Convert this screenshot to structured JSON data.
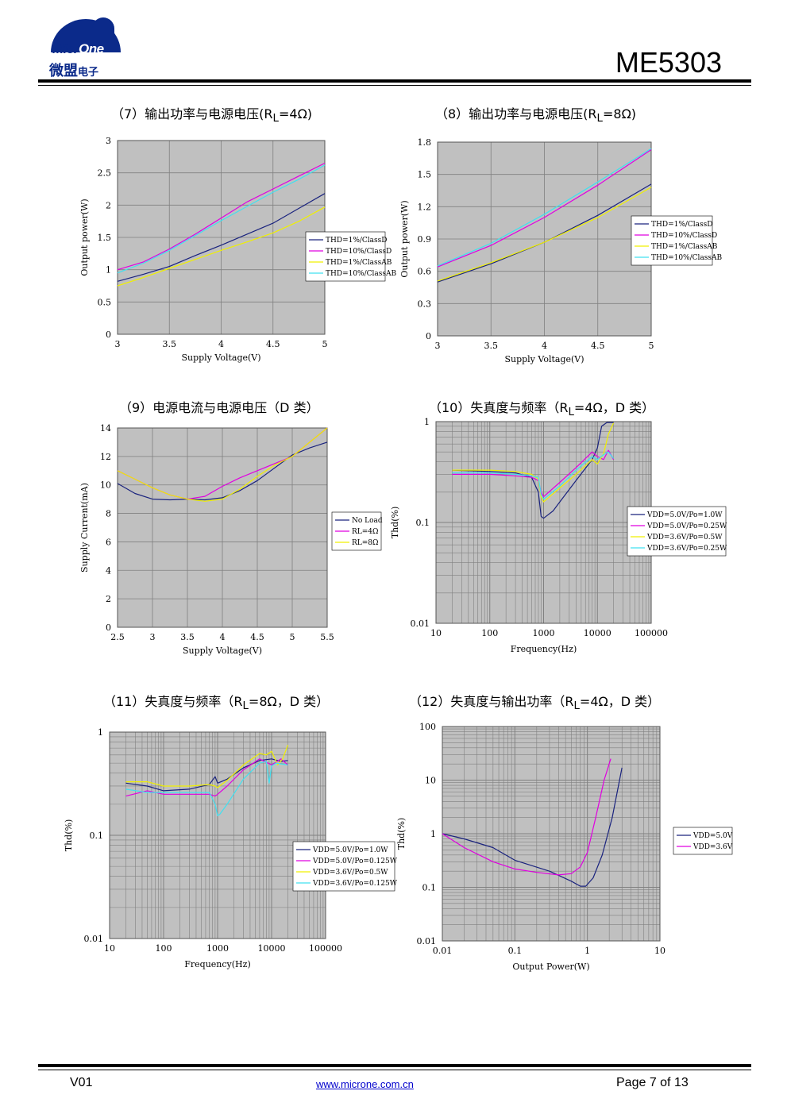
{
  "header": {
    "logo_text_a": "Micr",
    "logo_text_b": "One",
    "logo_cn_main": "微盟",
    "logo_cn_small": "电子",
    "doc_title": "ME5303"
  },
  "footer": {
    "version": "V01",
    "url": "www.microne.com.cn",
    "page": "Page 7 of 13"
  },
  "colors": {
    "plot_bg": "#c0c0c0",
    "grid": "#808080",
    "navy": "#1a237e",
    "magenta": "#e000e0",
    "yellow": "#f0f000",
    "cyan": "#40e0f0",
    "logo_blue": "#0b2a8a"
  },
  "chart_data": [
    {
      "id": "c7",
      "type": "line",
      "title_pre": "（7）输出功率与电源电压(R",
      "title_sub": "L",
      "title_post": "=4Ω)",
      "xlabel": "Supply Voltage(V)",
      "ylabel": "Output power(W)",
      "xscale": "linear",
      "yscale": "linear",
      "xlim": [
        3,
        5
      ],
      "ylim": [
        0,
        3
      ],
      "xticks": [
        3,
        3.5,
        4,
        4.5,
        5
      ],
      "xtick_labels": [
        "3",
        "3.5",
        "4",
        "4.5",
        "5"
      ],
      "yticks": [
        0,
        0.5,
        1,
        1.5,
        2,
        2.5,
        3
      ],
      "ytick_labels": [
        "0",
        "0.5",
        "1",
        "1.5",
        "2",
        "2.5",
        "3"
      ],
      "legend": "right",
      "series": [
        {
          "name": "THD=1%/ClassD",
          "color": "navy",
          "x": [
            3,
            3.25,
            3.5,
            3.75,
            4,
            4.25,
            4.5,
            4.75,
            5
          ],
          "y": [
            0.82,
            0.93,
            1.05,
            1.22,
            1.38,
            1.55,
            1.72,
            1.95,
            2.18
          ]
        },
        {
          "name": "THD=10%/ClassD",
          "color": "magenta",
          "x": [
            3,
            3.25,
            3.5,
            3.75,
            4,
            4.25,
            4.5,
            4.75,
            5
          ],
          "y": [
            1.0,
            1.12,
            1.32,
            1.55,
            1.8,
            2.05,
            2.25,
            2.45,
            2.65
          ]
        },
        {
          "name": "THD=1%/ClassAB",
          "color": "yellow",
          "x": [
            3,
            3.25,
            3.5,
            3.75,
            4,
            4.25,
            4.5,
            4.75,
            5
          ],
          "y": [
            0.75,
            0.88,
            1.02,
            1.16,
            1.3,
            1.43,
            1.57,
            1.75,
            1.97
          ]
        },
        {
          "name": "THD=10%/ClassAB",
          "color": "cyan",
          "x": [
            3,
            3.25,
            3.5,
            3.75,
            4,
            4.25,
            4.5,
            4.75,
            5
          ],
          "y": [
            0.95,
            1.1,
            1.3,
            1.53,
            1.76,
            1.98,
            2.2,
            2.4,
            2.62
          ]
        }
      ]
    },
    {
      "id": "c8",
      "type": "line",
      "title_pre": "（8）输出功率与电源电压(R",
      "title_sub": "L",
      "title_post": "=8Ω)",
      "xlabel": "Supply Voltage(V)",
      "ylabel": "Output power(W)",
      "xscale": "linear",
      "yscale": "linear",
      "xlim": [
        3,
        5
      ],
      "ylim": [
        0,
        1.8
      ],
      "xticks": [
        3,
        3.5,
        4,
        4.5,
        5
      ],
      "xtick_labels": [
        "3",
        "3.5",
        "4",
        "4.5",
        "5"
      ],
      "yticks": [
        0,
        0.3,
        0.6,
        0.9,
        1.2,
        1.5,
        1.8
      ],
      "ytick_labels": [
        "0",
        "0.3",
        "0.6",
        "0.9",
        "1.2",
        "1.5",
        "1.8"
      ],
      "legend": "right",
      "series": [
        {
          "name": "THD=1%/ClassD",
          "color": "navy",
          "x": [
            3,
            3.5,
            4,
            4.5,
            5
          ],
          "y": [
            0.5,
            0.67,
            0.87,
            1.12,
            1.41
          ]
        },
        {
          "name": "THD=10%/ClassD",
          "color": "magenta",
          "x": [
            3,
            3.5,
            4,
            4.5,
            5
          ],
          "y": [
            0.64,
            0.84,
            1.1,
            1.4,
            1.73
          ]
        },
        {
          "name": "THD=1%/ClassAB",
          "color": "yellow",
          "x": [
            3,
            3.5,
            4,
            4.5,
            5
          ],
          "y": [
            0.51,
            0.68,
            0.87,
            1.1,
            1.38
          ]
        },
        {
          "name": "THD=10%/ClassAB",
          "color": "cyan",
          "x": [
            3,
            3.5,
            4,
            4.5,
            5
          ],
          "y": [
            0.65,
            0.86,
            1.13,
            1.43,
            1.74
          ]
        }
      ]
    },
    {
      "id": "c9",
      "type": "line",
      "title_pre": "（9）电源电流与电源电压（D 类）",
      "title_sub": "",
      "title_post": "",
      "xlabel": "Supply Voltage(V)",
      "ylabel": "Supply Current(mA)",
      "xscale": "linear",
      "yscale": "linear",
      "xlim": [
        2.5,
        5.5
      ],
      "ylim": [
        0,
        14
      ],
      "xticks": [
        2.5,
        3,
        3.5,
        4,
        4.5,
        5,
        5.5
      ],
      "xtick_labels": [
        "2.5",
        "3",
        "3.5",
        "4",
        "4.5",
        "5",
        "5.5"
      ],
      "yticks": [
        0,
        2,
        4,
        6,
        8,
        10,
        12,
        14
      ],
      "ytick_labels": [
        "0",
        "2",
        "4",
        "6",
        "8",
        "10",
        "12",
        "14"
      ],
      "legend": "right",
      "series": [
        {
          "name": "No Load",
          "color": "navy",
          "x": [
            2.5,
            2.75,
            3,
            3.25,
            3.5,
            3.75,
            4,
            4.25,
            4.5,
            4.75,
            5,
            5.25,
            5.5
          ],
          "y": [
            10.1,
            9.4,
            9.0,
            8.95,
            9.0,
            8.95,
            9.1,
            9.6,
            10.3,
            11.2,
            12.1,
            12.6,
            13.0
          ]
        },
        {
          "name": "RL=4Ω",
          "color": "magenta",
          "x": [
            2.5,
            2.75,
            3,
            3.25,
            3.5,
            3.75,
            4,
            4.25,
            4.5,
            4.75,
            5,
            5.25,
            5.5
          ],
          "y": [
            11.0,
            10.4,
            9.8,
            9.3,
            9.0,
            9.2,
            9.9,
            10.5,
            11.0,
            11.5,
            12.0,
            13.0,
            14.0
          ]
        },
        {
          "name": "RL=8Ω",
          "color": "yellow",
          "x": [
            2.5,
            2.75,
            3,
            3.25,
            3.5,
            3.75,
            4,
            4.25,
            4.5,
            4.75,
            5,
            5.25,
            5.5
          ],
          "y": [
            11.0,
            10.4,
            9.8,
            9.3,
            9.0,
            8.85,
            9.0,
            9.7,
            10.6,
            11.4,
            12.0,
            13.0,
            14.0
          ]
        }
      ]
    },
    {
      "id": "c10",
      "type": "line",
      "title_pre": "（10）失真度与频率（R",
      "title_sub": "L",
      "title_post": "=4Ω，D 类）",
      "xlabel": "Frequency(Hz)",
      "ylabel": "Thd(%)",
      "xscale": "log",
      "yscale": "log",
      "xlim": [
        10,
        100000
      ],
      "ylim": [
        0.01,
        1
      ],
      "xticks": [
        10,
        100,
        1000,
        10000,
        100000
      ],
      "xtick_labels": [
        "10",
        "100",
        "1000",
        "10000",
        "100000"
      ],
      "yticks": [
        0.01,
        0.1,
        1
      ],
      "ytick_labels": [
        "0.01",
        "0.1",
        "1"
      ],
      "legend": "right",
      "series": [
        {
          "name": "VDD=5.0V/Po=1.0W",
          "color": "navy",
          "x": [
            20,
            100,
            300,
            600,
            800,
            900,
            1000,
            1500,
            2000,
            4000,
            8000,
            10000,
            12000,
            15000,
            20000
          ],
          "y": [
            0.33,
            0.32,
            0.31,
            0.28,
            0.2,
            0.115,
            0.11,
            0.13,
            0.16,
            0.26,
            0.42,
            0.55,
            0.9,
            0.98,
            0.98
          ]
        },
        {
          "name": "VDD=5.0V/Po=0.25W",
          "color": "magenta",
          "x": [
            20,
            100,
            300,
            600,
            800,
            900,
            1000,
            2000,
            4000,
            8000,
            10000,
            13000,
            16000,
            20000
          ],
          "y": [
            0.3,
            0.3,
            0.29,
            0.28,
            0.26,
            0.2,
            0.18,
            0.25,
            0.35,
            0.5,
            0.45,
            0.42,
            0.52,
            0.42
          ]
        },
        {
          "name": "VDD=3.6V/Po=0.5W",
          "color": "yellow",
          "x": [
            20,
            100,
            300,
            600,
            800,
            900,
            1000,
            2000,
            4000,
            8000,
            10000,
            13000,
            16000,
            20000
          ],
          "y": [
            0.33,
            0.33,
            0.32,
            0.3,
            0.27,
            0.18,
            0.16,
            0.22,
            0.3,
            0.42,
            0.38,
            0.48,
            0.75,
            0.97
          ]
        },
        {
          "name": "VDD=3.6V/Po=0.25W",
          "color": "cyan",
          "x": [
            20,
            100,
            300,
            600,
            800,
            900,
            1000,
            2000,
            4000,
            8000,
            10000,
            13000,
            16000,
            20000
          ],
          "y": [
            0.31,
            0.31,
            0.3,
            0.29,
            0.28,
            0.19,
            0.17,
            0.23,
            0.33,
            0.45,
            0.42,
            0.47,
            0.5,
            0.43
          ]
        }
      ]
    },
    {
      "id": "c11",
      "type": "line",
      "title_pre": "（11）失真度与频率（R",
      "title_sub": "L",
      "title_post": "=8Ω，D 类）",
      "xlabel": "Frequency(Hz)",
      "ylabel": "Thd(%)",
      "xscale": "log",
      "yscale": "log",
      "xlim": [
        10,
        100000
      ],
      "ylim": [
        0.01,
        1
      ],
      "xticks": [
        10,
        100,
        1000,
        10000,
        100000
      ],
      "xtick_labels": [
        "10",
        "100",
        "1000",
        "10000",
        "100000"
      ],
      "yticks": [
        0.01,
        0.1,
        1
      ],
      "ytick_labels": [
        "0.01",
        "0.1",
        "1"
      ],
      "legend": "right",
      "series": [
        {
          "name": "VDD=5.0V/Po=1.0W",
          "color": "navy",
          "x": [
            20,
            50,
            100,
            300,
            700,
            900,
            1000,
            1500,
            3000,
            6000,
            10000,
            15000,
            20000
          ],
          "y": [
            0.32,
            0.3,
            0.27,
            0.28,
            0.31,
            0.37,
            0.32,
            0.35,
            0.45,
            0.53,
            0.55,
            0.52,
            0.53
          ]
        },
        {
          "name": "VDD=5.0V/Po=0.125W",
          "color": "magenta",
          "x": [
            20,
            50,
            100,
            300,
            700,
            900,
            1000,
            1500,
            3000,
            6000,
            10000,
            15000,
            20000
          ],
          "y": [
            0.24,
            0.27,
            0.25,
            0.25,
            0.25,
            0.24,
            0.25,
            0.3,
            0.43,
            0.55,
            0.48,
            0.55,
            0.48
          ]
        },
        {
          "name": "VDD=3.6V/Po=0.5W",
          "color": "yellow",
          "x": [
            20,
            50,
            100,
            300,
            700,
            900,
            1000,
            1500,
            3000,
            6000,
            8000,
            10000,
            13000,
            16000,
            20000
          ],
          "y": [
            0.33,
            0.33,
            0.3,
            0.3,
            0.31,
            0.3,
            0.29,
            0.34,
            0.48,
            0.62,
            0.6,
            0.65,
            0.48,
            0.55,
            0.75
          ]
        },
        {
          "name": "VDD=3.6V/Po=0.125W",
          "color": "cyan",
          "x": [
            20,
            50,
            100,
            300,
            700,
            900,
            1000,
            1100,
            1500,
            3000,
            6000,
            8000,
            9000,
            10000,
            12000,
            20000
          ],
          "y": [
            0.28,
            0.26,
            0.26,
            0.26,
            0.26,
            0.2,
            0.155,
            0.16,
            0.2,
            0.35,
            0.5,
            0.52,
            0.32,
            0.47,
            0.5,
            0.48
          ]
        }
      ]
    },
    {
      "id": "c12",
      "type": "line",
      "title_pre": "（12）失真度与输出功率（R",
      "title_sub": "L",
      "title_post": "=4Ω，D 类）",
      "xlabel": "Output Power(W)",
      "ylabel": "Thd(%)",
      "xscale": "log",
      "yscale": "log",
      "xlim": [
        0.01,
        10
      ],
      "ylim": [
        0.01,
        100
      ],
      "xticks": [
        0.01,
        0.1,
        1,
        10
      ],
      "xtick_labels": [
        "0.01",
        "0.1",
        "1",
        "10"
      ],
      "yticks": [
        0.01,
        0.1,
        1,
        10,
        100
      ],
      "ytick_labels": [
        "0.01",
        "0.1",
        "1",
        "10",
        "100"
      ],
      "legend": "right",
      "series": [
        {
          "name": "VDD=5.0V",
          "color": "navy",
          "x": [
            0.01,
            0.02,
            0.05,
            0.1,
            0.3,
            0.6,
            0.8,
            0.95,
            1.2,
            1.6,
            2.2,
            3.0
          ],
          "y": [
            1.0,
            0.8,
            0.55,
            0.32,
            0.2,
            0.13,
            0.105,
            0.105,
            0.15,
            0.4,
            2.0,
            17
          ]
        },
        {
          "name": "VDD=3.6V",
          "color": "magenta",
          "x": [
            0.01,
            0.02,
            0.05,
            0.1,
            0.2,
            0.4,
            0.6,
            0.8,
            1.0,
            1.3,
            1.7,
            2.1
          ],
          "y": [
            1.0,
            0.55,
            0.3,
            0.22,
            0.19,
            0.17,
            0.18,
            0.24,
            0.45,
            2.0,
            10,
            25
          ]
        }
      ]
    }
  ]
}
